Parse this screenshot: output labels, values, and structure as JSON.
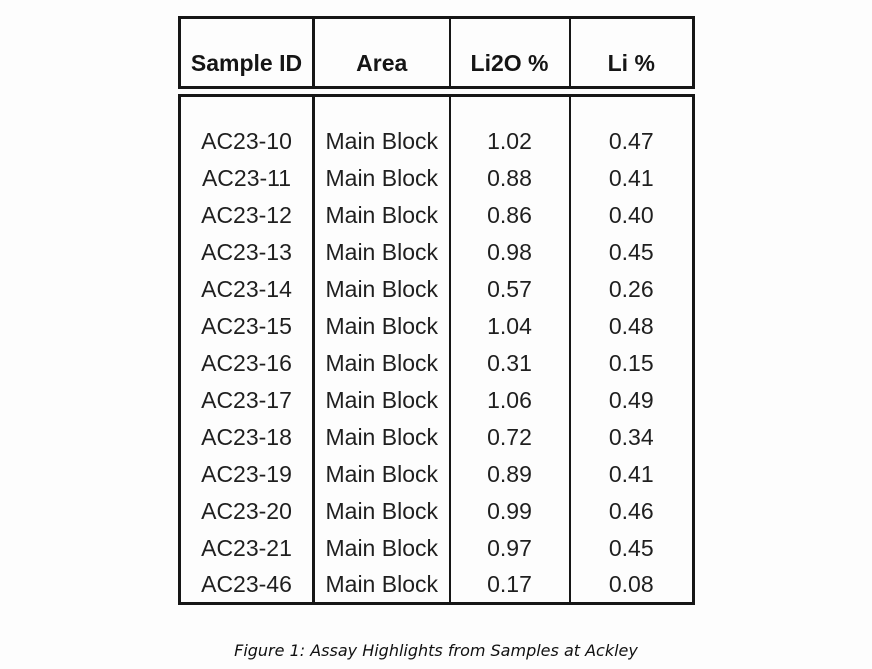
{
  "figure": {
    "caption": "Figure 1: Assay Highlights from Samples at Ackley"
  },
  "table": {
    "headers": [
      "Sample ID",
      "Area",
      "Li2O %",
      "Li %"
    ],
    "rows": [
      [
        "AC23-10",
        "Main Block",
        "1.02",
        "0.47"
      ],
      [
        "AC23-11",
        "Main Block",
        "0.88",
        "0.41"
      ],
      [
        "AC23-12",
        "Main Block",
        "0.86",
        "0.40"
      ],
      [
        "AC23-13",
        "Main Block",
        "0.98",
        "0.45"
      ],
      [
        "AC23-14",
        "Main Block",
        "0.57",
        "0.26"
      ],
      [
        "AC23-15",
        "Main Block",
        "1.04",
        "0.48"
      ],
      [
        "AC23-16",
        "Main Block",
        "0.31",
        "0.15"
      ],
      [
        "AC23-17",
        "Main Block",
        "1.06",
        "0.49"
      ],
      [
        "AC23-18",
        "Main Block",
        "0.72",
        "0.34"
      ],
      [
        "AC23-19",
        "Main Block",
        "0.89",
        "0.41"
      ],
      [
        "AC23-20",
        "Main Block",
        "0.99",
        "0.46"
      ],
      [
        "AC23-21",
        "Main Block",
        "0.97",
        "0.45"
      ],
      [
        "AC23-46",
        "Main Block",
        "0.17",
        "0.08"
      ]
    ],
    "border_color": "#161616",
    "background_color": "#fdfdfd"
  },
  "chart_data": {
    "type": "table",
    "title": "Figure 1: Assay Highlights from Samples at Ackley",
    "columns": [
      "Sample ID",
      "Area",
      "Li2O %",
      "Li %"
    ],
    "rows": [
      [
        "AC23-10",
        "Main Block",
        1.02,
        0.47
      ],
      [
        "AC23-11",
        "Main Block",
        0.88,
        0.41
      ],
      [
        "AC23-12",
        "Main Block",
        0.86,
        0.4
      ],
      [
        "AC23-13",
        "Main Block",
        0.98,
        0.45
      ],
      [
        "AC23-14",
        "Main Block",
        0.57,
        0.26
      ],
      [
        "AC23-15",
        "Main Block",
        1.04,
        0.48
      ],
      [
        "AC23-16",
        "Main Block",
        0.31,
        0.15
      ],
      [
        "AC23-17",
        "Main Block",
        1.06,
        0.49
      ],
      [
        "AC23-18",
        "Main Block",
        0.72,
        0.34
      ],
      [
        "AC23-19",
        "Main Block",
        0.89,
        0.41
      ],
      [
        "AC23-20",
        "Main Block",
        0.99,
        0.46
      ],
      [
        "AC23-21",
        "Main Block",
        0.97,
        0.45
      ],
      [
        "AC23-46",
        "Main Block",
        0.17,
        0.08
      ]
    ]
  }
}
